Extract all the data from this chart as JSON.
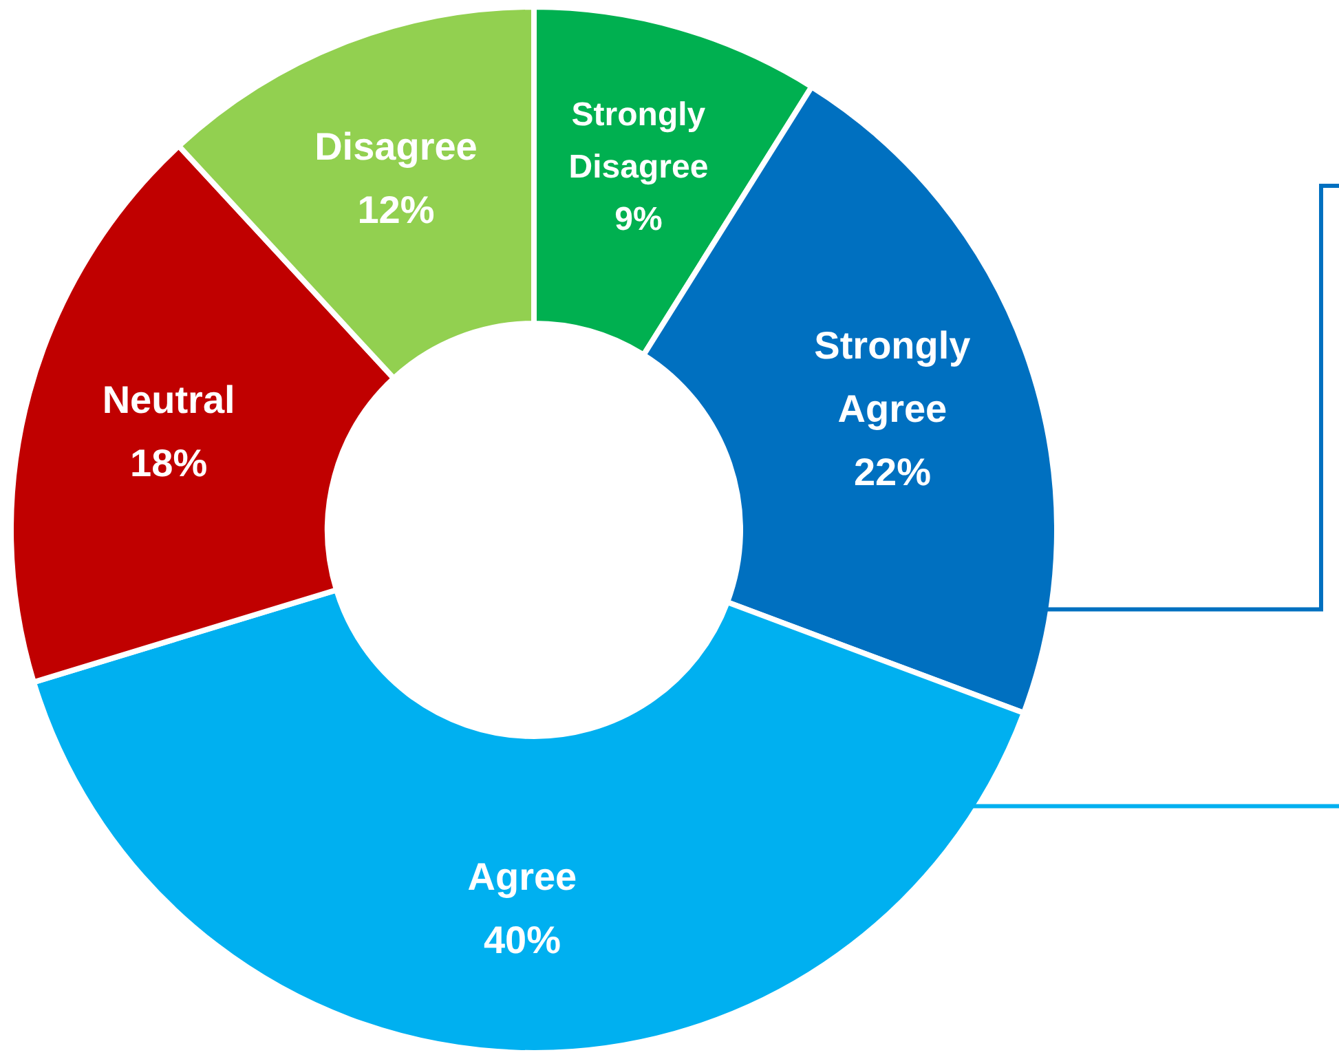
{
  "chart_data": {
    "type": "donut",
    "categories": [
      "Strongly Disagree",
      "Strongly Agree",
      "Agree",
      "Neutral",
      "Disagree"
    ],
    "values": [
      9,
      22,
      40,
      18,
      12
    ],
    "value_labels": [
      "9%",
      "22%",
      "40%",
      "18%",
      "12%"
    ],
    "colors": [
      "#00b050",
      "#0070c0",
      "#00b0f0",
      "#c00000",
      "#92d050"
    ]
  }
}
